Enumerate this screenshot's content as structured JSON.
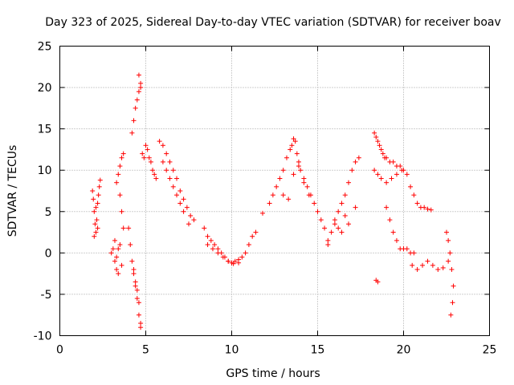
{
  "chart_data": {
    "type": "scatter",
    "title": "Day 323 of 2025, Sidereal Day-to-day VTEC variation (SDTVAR) for receiver boav",
    "xlabel": "GPS time / hours",
    "ylabel": "SDTVAR / TECUs",
    "xlim": [
      0,
      25
    ],
    "ylim": [
      -10,
      25
    ],
    "xticks": [
      "0",
      "5",
      "10",
      "15",
      "20",
      "25"
    ],
    "yticks": [
      "-10",
      "-5",
      "0",
      "5",
      "10",
      "15",
      "20",
      "25"
    ],
    "grid": true,
    "marker": "+",
    "series": [
      {
        "name": "SDTVAR",
        "color": "#ff0000",
        "x": [
          1.9,
          1.95,
          2.0,
          2.05,
          2.1,
          2.15,
          2.2,
          2.25,
          2.3,
          2.35,
          2.0,
          2.1,
          2.2,
          3.0,
          3.1,
          3.2,
          3.3,
          3.4,
          3.5,
          3.6,
          3.7,
          3.2,
          3.3,
          3.4,
          3.5,
          3.6,
          3.7,
          3.3,
          3.4,
          3.5,
          3.6,
          4.0,
          4.1,
          4.2,
          4.3,
          4.4,
          4.5,
          4.6,
          4.7,
          4.2,
          4.3,
          4.4,
          4.5,
          4.6,
          4.7,
          4.3,
          4.4,
          4.5,
          4.6,
          4.7,
          4.6,
          4.7,
          4.8,
          4.9,
          5.0,
          5.1,
          5.2,
          5.3,
          5.4,
          5.5,
          5.6,
          5.8,
          6.0,
          6.2,
          6.4,
          6.6,
          6.8,
          7.0,
          7.2,
          7.4,
          7.6,
          7.8,
          6.0,
          6.2,
          6.4,
          6.6,
          6.8,
          7.0,
          7.2,
          7.5,
          8.4,
          8.6,
          8.8,
          9.0,
          9.2,
          9.4,
          9.6,
          9.8,
          10.0,
          10.2,
          10.4,
          8.6,
          8.9,
          9.2,
          9.5,
          9.8,
          10.1,
          10.4,
          10.6,
          10.8,
          11.0,
          11.2,
          11.4,
          11.8,
          12.2,
          12.4,
          12.6,
          12.8,
          13.0,
          13.2,
          13.4,
          13.5,
          13.6,
          13.7,
          13.8,
          13.9,
          14.0,
          14.2,
          14.4,
          14.6,
          14.8,
          13.0,
          13.3,
          13.6,
          13.9,
          14.2,
          14.5,
          15.0,
          15.2,
          15.4,
          15.6,
          15.8,
          16.0,
          16.2,
          16.4,
          16.6,
          16.8,
          17.0,
          17.2,
          17.4,
          16.0,
          16.4,
          16.8,
          17.2,
          15.6,
          16.2,
          16.6,
          18.3,
          18.4,
          18.5,
          18.6,
          18.7,
          18.8,
          18.9,
          19.0,
          19.2,
          19.4,
          19.6,
          19.8,
          20.0,
          20.2,
          18.3,
          18.5,
          18.7,
          19.0,
          19.3,
          19.6,
          19.9,
          19.0,
          19.2,
          19.4,
          19.6,
          19.8,
          20.0,
          20.2,
          20.4,
          20.6,
          20.4,
          20.6,
          20.8,
          21.0,
          21.2,
          21.4,
          21.6,
          20.5,
          20.8,
          21.1,
          21.4,
          21.7,
          22.0,
          22.3,
          22.6,
          22.5,
          22.6,
          22.7,
          22.8,
          22.9,
          22.85,
          22.75,
          18.4,
          18.5
        ],
        "y": [
          7.5,
          6.5,
          5.0,
          3.5,
          2.5,
          4.0,
          6.0,
          7.0,
          8.0,
          8.8,
          2.0,
          5.5,
          3.0,
          0.0,
          0.5,
          1.5,
          8.5,
          9.5,
          10.5,
          11.5,
          12.0,
          -1.0,
          -2.0,
          -2.5,
          7.0,
          5.0,
          3.0,
          -0.5,
          0.5,
          1.0,
          -1.5,
          3.0,
          1.0,
          -1.0,
          -2.5,
          -3.5,
          -4.5,
          -6.0,
          -8.5,
          14.5,
          16.0,
          17.5,
          18.5,
          19.5,
          20.5,
          -2.0,
          -4.0,
          -5.5,
          -7.5,
          -9.0,
          21.5,
          20.0,
          12.0,
          11.5,
          13.0,
          12.5,
          11.5,
          11.0,
          10.0,
          9.5,
          9.0,
          13.5,
          13.0,
          12.0,
          11.0,
          10.0,
          9.0,
          7.5,
          6.5,
          5.5,
          4.5,
          4.0,
          11.0,
          10.0,
          9.0,
          8.0,
          7.0,
          6.0,
          5.0,
          3.5,
          3.0,
          2.0,
          1.5,
          1.0,
          0.5,
          0.0,
          -0.5,
          -1.0,
          -1.2,
          -1.0,
          -0.8,
          1.0,
          0.5,
          0.0,
          -0.5,
          -1.0,
          -1.3,
          -1.2,
          -0.5,
          0.0,
          1.0,
          2.0,
          2.5,
          4.8,
          6.0,
          7.0,
          8.0,
          9.0,
          10.0,
          11.5,
          12.5,
          13.0,
          13.8,
          13.5,
          12.0,
          11.0,
          10.0,
          9.0,
          8.0,
          7.0,
          6.0,
          7.0,
          6.5,
          9.5,
          10.5,
          8.5,
          7.0,
          5.0,
          4.0,
          3.0,
          1.0,
          2.5,
          3.5,
          5.0,
          6.0,
          7.0,
          8.5,
          10.0,
          11.0,
          11.5,
          4.0,
          2.5,
          3.5,
          5.5,
          1.5,
          3.0,
          4.5,
          14.5,
          14.0,
          13.5,
          13.0,
          12.5,
          12.0,
          11.5,
          11.5,
          11.0,
          11.0,
          10.5,
          10.5,
          10.0,
          9.5,
          10.0,
          9.5,
          9.0,
          8.5,
          9.0,
          9.5,
          10.0,
          5.5,
          4.0,
          2.5,
          1.5,
          0.5,
          0.5,
          0.5,
          0.0,
          0.0,
          8.0,
          7.0,
          6.0,
          5.5,
          5.5,
          5.3,
          5.2,
          -1.5,
          -2.0,
          -1.5,
          -1.0,
          -1.5,
          -2.0,
          -1.8,
          -1.0,
          2.5,
          1.5,
          0.0,
          -2.0,
          -4.0,
          -6.0,
          -7.5,
          -3.3,
          -3.5
        ]
      }
    ]
  }
}
